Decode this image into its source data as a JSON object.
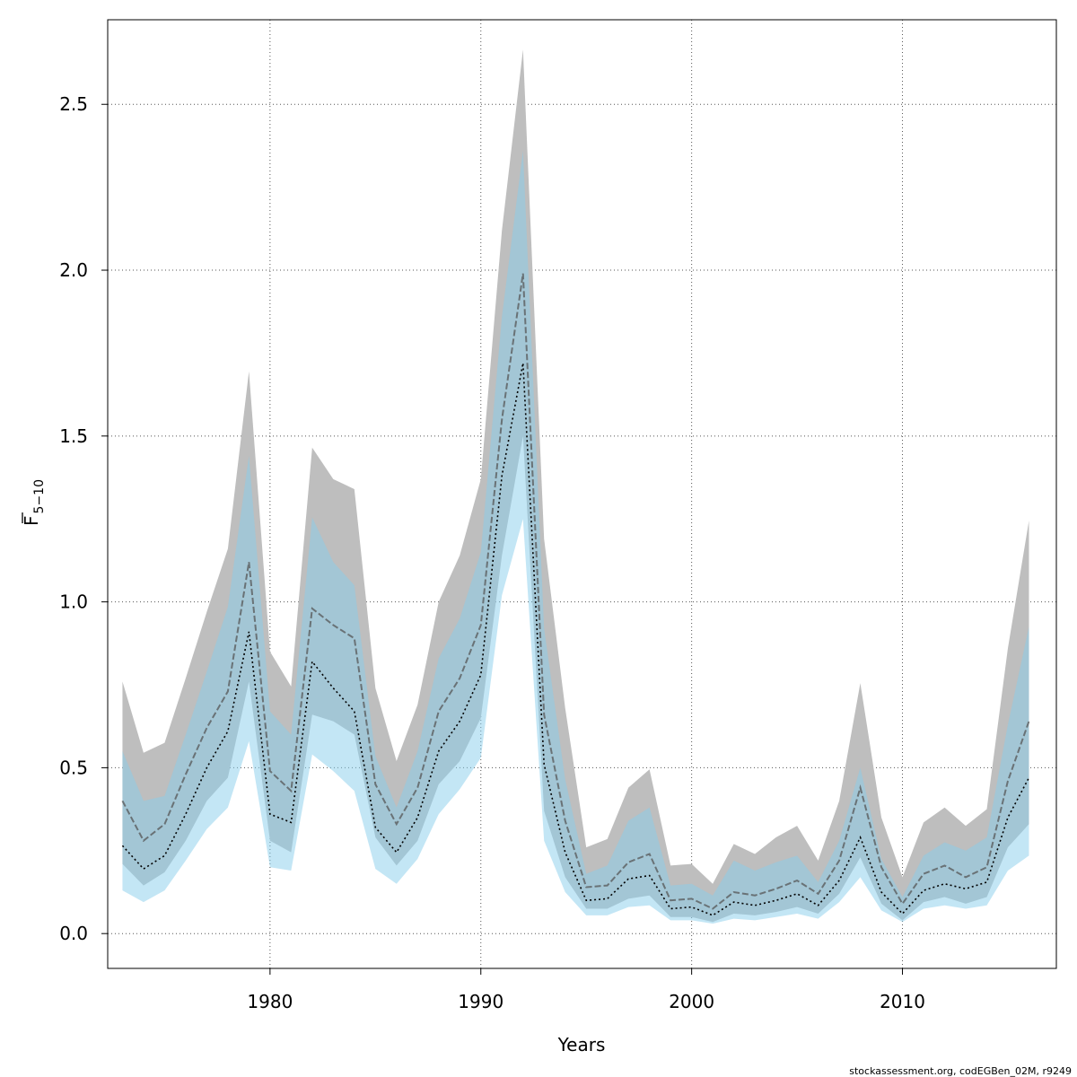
{
  "chart_data": {
    "type": "area",
    "xlabel": "Years",
    "ylabel": "F",
    "ylabel_subscript": "5−10",
    "xlim": [
      1972.3,
      2017.3
    ],
    "ylim": [
      -0.105,
      2.755
    ],
    "xticks": [
      1980,
      1990,
      2000,
      2010
    ],
    "yticks": [
      0.0,
      0.5,
      1.0,
      1.5,
      2.0,
      2.5
    ],
    "ytick_labels": [
      "0.0",
      "0.5",
      "1.0",
      "1.5",
      "2.0",
      "2.5"
    ],
    "grid": true,
    "x": [
      1973,
      1974,
      1975,
      1976,
      1977,
      1978,
      1979,
      1980,
      1981,
      1982,
      1983,
      1984,
      1985,
      1986,
      1987,
      1988,
      1989,
      1990,
      1991,
      1992,
      1993,
      1994,
      1995,
      1996,
      1997,
      1998,
      1999,
      2000,
      2001,
      2002,
      2003,
      2004,
      2005,
      2006,
      2007,
      2008,
      2009,
      2010,
      2011,
      2012,
      2013,
      2014,
      2015,
      2016
    ],
    "series": [
      {
        "fill_color": "#bebebe",
        "line_color": "#555555",
        "line_style": "dashed",
        "mid": [
          0.4,
          0.28,
          0.33,
          0.48,
          0.62,
          0.73,
          1.12,
          0.49,
          0.43,
          0.98,
          0.93,
          0.89,
          0.45,
          0.33,
          0.44,
          0.67,
          0.77,
          0.93,
          1.55,
          1.99,
          0.66,
          0.34,
          0.14,
          0.145,
          0.215,
          0.24,
          0.1,
          0.105,
          0.075,
          0.125,
          0.115,
          0.135,
          0.16,
          0.12,
          0.22,
          0.44,
          0.2,
          0.09,
          0.18,
          0.205,
          0.17,
          0.2,
          0.46,
          0.64
        ],
        "lower": [
          0.21,
          0.145,
          0.185,
          0.28,
          0.4,
          0.47,
          0.76,
          0.28,
          0.245,
          0.66,
          0.64,
          0.6,
          0.29,
          0.205,
          0.28,
          0.45,
          0.52,
          0.65,
          1.14,
          1.5,
          0.37,
          0.17,
          0.075,
          0.075,
          0.105,
          0.115,
          0.05,
          0.05,
          0.035,
          0.06,
          0.055,
          0.065,
          0.08,
          0.06,
          0.12,
          0.23,
          0.09,
          0.04,
          0.095,
          0.11,
          0.09,
          0.11,
          0.26,
          0.33
        ],
        "upper": [
          0.76,
          0.545,
          0.575,
          0.77,
          0.97,
          1.16,
          1.695,
          0.85,
          0.745,
          1.465,
          1.37,
          1.34,
          0.74,
          0.52,
          0.69,
          1.0,
          1.14,
          1.37,
          2.12,
          2.665,
          1.19,
          0.68,
          0.26,
          0.285,
          0.44,
          0.495,
          0.205,
          0.21,
          0.15,
          0.27,
          0.24,
          0.29,
          0.325,
          0.22,
          0.4,
          0.755,
          0.35,
          0.17,
          0.335,
          0.38,
          0.325,
          0.375,
          0.86,
          1.245
        ]
      },
      {
        "fill_color": "#87ceeb",
        "line_color": "#000000",
        "line_style": "dotted",
        "mid": [
          0.265,
          0.195,
          0.235,
          0.36,
          0.5,
          0.61,
          0.91,
          0.36,
          0.335,
          0.82,
          0.74,
          0.67,
          0.32,
          0.245,
          0.35,
          0.55,
          0.64,
          0.78,
          1.38,
          1.72,
          0.51,
          0.245,
          0.1,
          0.105,
          0.165,
          0.175,
          0.075,
          0.08,
          0.055,
          0.095,
          0.085,
          0.1,
          0.12,
          0.085,
          0.16,
          0.29,
          0.125,
          0.06,
          0.13,
          0.15,
          0.135,
          0.155,
          0.35,
          0.47
        ],
        "lower": [
          0.13,
          0.095,
          0.13,
          0.22,
          0.315,
          0.38,
          0.58,
          0.2,
          0.19,
          0.54,
          0.49,
          0.43,
          0.195,
          0.15,
          0.225,
          0.36,
          0.435,
          0.53,
          1.02,
          1.25,
          0.28,
          0.125,
          0.055,
          0.055,
          0.08,
          0.085,
          0.04,
          0.04,
          0.03,
          0.045,
          0.04,
          0.05,
          0.06,
          0.045,
          0.095,
          0.17,
          0.07,
          0.035,
          0.075,
          0.085,
          0.075,
          0.085,
          0.19,
          0.235
        ],
        "upper": [
          0.55,
          0.4,
          0.415,
          0.6,
          0.79,
          0.985,
          1.44,
          0.67,
          0.6,
          1.255,
          1.12,
          1.05,
          0.535,
          0.38,
          0.55,
          0.83,
          0.95,
          1.15,
          1.86,
          2.36,
          0.92,
          0.465,
          0.18,
          0.205,
          0.34,
          0.38,
          0.145,
          0.15,
          0.115,
          0.22,
          0.19,
          0.215,
          0.235,
          0.155,
          0.28,
          0.5,
          0.225,
          0.11,
          0.235,
          0.275,
          0.25,
          0.29,
          0.63,
          0.925
        ]
      }
    ]
  },
  "footer": "stockassessment.org, codEGBen_02M, r9249"
}
